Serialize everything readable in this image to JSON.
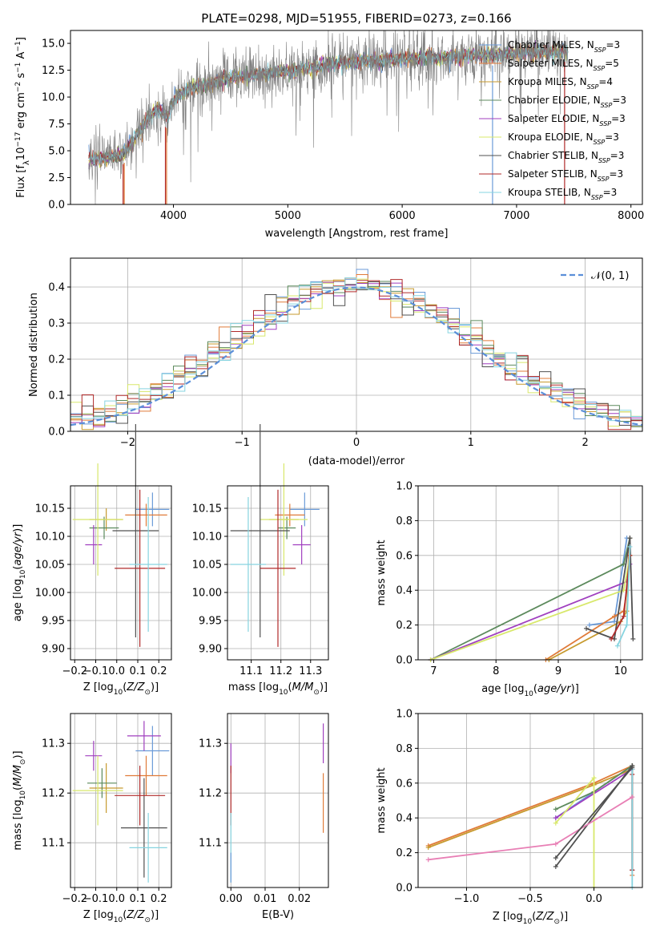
{
  "figure_title": "PLATE=0298, MJD=51955, FIBERID=0273, z=0.166",
  "models": [
    {
      "name": "Chabrier MILES",
      "nssp": "3",
      "color": "#6b9bd8"
    },
    {
      "name": "Salpeter MILES",
      "nssp": "5",
      "color": "#e07b39"
    },
    {
      "name": "Kroupa MILES",
      "nssp": "4",
      "color": "#c79a2e"
    },
    {
      "name": "Chabrier ELODIE",
      "nssp": "3",
      "color": "#5c8a5c"
    },
    {
      "name": "Salpeter ELODIE",
      "nssp": "3",
      "color": "#a03fbf"
    },
    {
      "name": "Kroupa ELODIE",
      "nssp": "3",
      "color": "#d8e86b"
    },
    {
      "name": "Chabrier STELIB",
      "nssp": "3",
      "color": "#505050"
    },
    {
      "name": "Salpeter STELIB",
      "nssp": "3",
      "color": "#b02a2a"
    },
    {
      "name": "Kroupa STELIB",
      "nssp": "3",
      "color": "#86d4e0"
    }
  ],
  "chart_data": [
    {
      "id": "spectrum",
      "type": "line",
      "xlabel": "wavelength [Angstrom, rest frame]",
      "ylabel": "Flux [f_λ 10^-17 erg cm^-2 s^-1 A^-1]",
      "xlim": [
        3100,
        8100
      ],
      "ylim": [
        0,
        16.2
      ],
      "xticks": [
        4000,
        5000,
        6000,
        7000,
        8000
      ],
      "yticks": [
        0.0,
        2.5,
        5.0,
        7.5,
        10.0,
        12.5,
        15.0
      ],
      "ytick_labels": [
        "0.0",
        "2.5",
        "5.0",
        "7.5",
        "10.0",
        "12.5",
        "15.0"
      ],
      "data_color": "#808080",
      "continuum": {
        "x": [
          3260,
          3400,
          3550,
          3650,
          3780,
          3860,
          3950,
          4000,
          4150,
          4300,
          4500,
          4700,
          4900,
          5100,
          5300,
          5500,
          5700,
          5900,
          6100,
          6300,
          6500,
          6700,
          6900,
          7100,
          7300,
          7450
        ],
        "y": [
          4.2,
          4.3,
          4.6,
          6.0,
          8.0,
          9.0,
          8.0,
          9.8,
          10.8,
          11.2,
          11.8,
          12.0,
          12.3,
          12.6,
          12.9,
          13.2,
          13.4,
          13.5,
          13.6,
          13.7,
          13.8,
          13.9,
          14.0,
          14.1,
          14.2,
          14.3
        ]
      },
      "legend": "top-right"
    },
    {
      "id": "residuals",
      "type": "histogram",
      "xlabel": "(data-model)/error",
      "ylabel": "Normed distribution",
      "xlim": [
        -2.5,
        2.5
      ],
      "ylim": [
        0,
        0.48
      ],
      "xticks": [
        -2,
        -1,
        0,
        1,
        2
      ],
      "xtick_labels": [
        "−2",
        "−1",
        "0",
        "1",
        "2"
      ],
      "yticks": [
        0.0,
        0.1,
        0.2,
        0.3,
        0.4
      ],
      "ytick_labels": [
        "0.0",
        "0.1",
        "0.2",
        "0.3",
        "0.4"
      ],
      "bins": 50,
      "bin_width": 0.1,
      "reference_label": "𝒩(0, 1)",
      "reference_color": "#5b8fd9",
      "grid": true,
      "legend": "top-right"
    },
    {
      "id": "age-vs-Z",
      "type": "scatter",
      "xlabel": "Z [log10(Z/Z⊙)]",
      "ylabel": "age  [log10(age/yr)]",
      "xlim": [
        -0.22,
        0.26
      ],
      "ylim": [
        9.88,
        10.19
      ],
      "xticks": [
        -0.2,
        -0.1,
        0.0,
        0.1,
        0.2
      ],
      "xtick_labels": [
        "−0.2",
        "−0.1",
        "0.0",
        "0.1",
        "0.2"
      ],
      "yticks": [
        9.9,
        9.95,
        10.0,
        10.05,
        10.1,
        10.15
      ],
      "ytick_labels": [
        "9.90",
        "9.95",
        "10.00",
        "10.05",
        "10.10",
        "10.15"
      ],
      "points": [
        {
          "model": 0,
          "x": 0.17,
          "xerr": 0.08,
          "y": 10.148,
          "yerr": 0.03
        },
        {
          "model": 1,
          "x": 0.14,
          "xerr": 0.1,
          "y": 10.138,
          "yerr": 0.02
        },
        {
          "model": 2,
          "x": -0.05,
          "xerr": 0.08,
          "y": 10.13,
          "yerr": 0.02
        },
        {
          "model": 3,
          "x": -0.06,
          "xerr": 0.07,
          "y": 10.115,
          "yerr": 0.02
        },
        {
          "model": 4,
          "x": -0.11,
          "xerr": 0.04,
          "y": 10.085,
          "yerr": 0.035
        },
        {
          "model": 5,
          "x": -0.09,
          "xerr": 0.12,
          "y": 10.13,
          "yerr": 0.1
        },
        {
          "model": 6,
          "x": 0.09,
          "xerr": 0.11,
          "y": 10.11,
          "yerr": 0.19
        },
        {
          "model": 7,
          "x": 0.11,
          "xerr": 0.12,
          "y": 10.043,
          "yerr": 0.14
        },
        {
          "model": 8,
          "x": 0.15,
          "xerr": 0.09,
          "y": 10.05,
          "yerr": 0.12
        }
      ]
    },
    {
      "id": "age-vs-mass",
      "type": "scatter",
      "xlabel": "mass [log10(M/M⊙)]",
      "ylabel": "",
      "xlim": [
        11.02,
        11.36
      ],
      "ylim": [
        9.88,
        10.19
      ],
      "xticks": [
        11.1,
        11.2,
        11.3
      ],
      "xtick_labels": [
        "11.1",
        "11.2",
        "11.3"
      ],
      "yticks": [
        9.9,
        9.95,
        10.0,
        10.05,
        10.1,
        10.15
      ],
      "ytick_labels": [
        "9.90",
        "9.95",
        "10.00",
        "10.05",
        "10.10",
        "10.15"
      ],
      "points": [
        {
          "model": 0,
          "x": 11.28,
          "xerr": 0.05,
          "y": 10.148,
          "yerr": 0.03
        },
        {
          "model": 1,
          "x": 11.23,
          "xerr": 0.05,
          "y": 10.138,
          "yerr": 0.02
        },
        {
          "model": 2,
          "x": 11.21,
          "xerr": 0.05,
          "y": 10.13,
          "yerr": 0.02
        },
        {
          "model": 3,
          "x": 11.22,
          "xerr": 0.03,
          "y": 10.115,
          "yerr": 0.02
        },
        {
          "model": 4,
          "x": 11.27,
          "xerr": 0.03,
          "y": 10.085,
          "yerr": 0.035
        },
        {
          "model": 5,
          "x": 11.21,
          "xerr": 0.08,
          "y": 10.13,
          "yerr": 0.1
        },
        {
          "model": 6,
          "x": 11.13,
          "xerr": 0.1,
          "y": 10.11,
          "yerr": 0.19
        },
        {
          "model": 7,
          "x": 11.19,
          "xerr": 0.06,
          "y": 10.043,
          "yerr": 0.14
        },
        {
          "model": 8,
          "x": 11.09,
          "xerr": 0.06,
          "y": 10.05,
          "yerr": 0.12
        }
      ]
    },
    {
      "id": "weight-vs-age",
      "type": "line",
      "xlabel": "age  [log10(age/yr)]",
      "ylabel": "mass weight",
      "xlim": [
        6.75,
        10.35
      ],
      "ylim": [
        0,
        1.0
      ],
      "xticks": [
        7,
        8,
        9,
        10
      ],
      "xtick_labels": [
        "7",
        "8",
        "9",
        "10"
      ],
      "yticks": [
        0.0,
        0.2,
        0.4,
        0.6,
        0.8,
        1.0
      ],
      "ytick_labels": [
        "0.0",
        "0.2",
        "0.4",
        "0.6",
        "0.8",
        "1.0"
      ],
      "series": [
        {
          "model": 0,
          "x": [
            9.5,
            9.9,
            10.1
          ],
          "y": [
            0.2,
            0.22,
            0.7
          ]
        },
        {
          "model": 1,
          "x": [
            8.8,
            9.9,
            10.05,
            10.1,
            10.15
          ],
          "y": [
            0.0,
            0.25,
            0.28,
            0.4,
            0.7
          ]
        },
        {
          "model": 2,
          "x": [
            8.85,
            10.0,
            10.1,
            10.15
          ],
          "y": [
            0.0,
            0.22,
            0.28,
            0.6
          ]
        },
        {
          "model": 3,
          "x": [
            6.95,
            10.05,
            10.15
          ],
          "y": [
            0.0,
            0.55,
            0.7
          ]
        },
        {
          "model": 4,
          "x": [
            6.95,
            10.1,
            10.15
          ],
          "y": [
            0.0,
            0.45,
            0.55
          ]
        },
        {
          "model": 5,
          "x": [
            6.95,
            10.05,
            10.15
          ],
          "y": [
            0.0,
            0.4,
            0.6
          ]
        },
        {
          "model": 6,
          "x": [
            9.45,
            9.9,
            10.15,
            10.2
          ],
          "y": [
            0.18,
            0.12,
            0.7,
            0.12
          ]
        },
        {
          "model": 7,
          "x": [
            9.85,
            10.05,
            10.15
          ],
          "y": [
            0.12,
            0.25,
            0.6
          ]
        },
        {
          "model": 8,
          "x": [
            9.95,
            10.1,
            10.15
          ],
          "y": [
            0.08,
            0.2,
            0.65
          ]
        }
      ]
    },
    {
      "id": "mass-vs-Z",
      "type": "scatter",
      "xlabel": "Z [log10(Z/Z⊙)]",
      "ylabel": "mass [log10(M/M⊙)]",
      "xlim": [
        -0.22,
        0.26
      ],
      "ylim": [
        11.01,
        11.36
      ],
      "xticks": [
        -0.2,
        -0.1,
        0.0,
        0.1,
        0.2
      ],
      "xtick_labels": [
        "−0.2",
        "−0.1",
        "0.0",
        "0.1",
        "0.2"
      ],
      "yticks": [
        11.1,
        11.2,
        11.3
      ],
      "ytick_labels": [
        "11.1",
        "11.2",
        "11.3"
      ],
      "points": [
        {
          "model": 0,
          "x": 0.17,
          "xerr": 0.08,
          "y": 11.285,
          "yerr": 0.05
        },
        {
          "model": 1,
          "x": 0.14,
          "xerr": 0.1,
          "y": 11.235,
          "yerr": 0.04
        },
        {
          "model": 2,
          "x": -0.05,
          "xerr": 0.08,
          "y": 11.21,
          "yerr": 0.05
        },
        {
          "model": 3,
          "x": -0.07,
          "xerr": 0.07,
          "y": 11.22,
          "yerr": 0.03
        },
        {
          "model": 4,
          "x": -0.11,
          "xerr": 0.04,
          "y": 11.275,
          "yerr": 0.03
        },
        {
          "model": 5,
          "x": -0.09,
          "xerr": 0.12,
          "y": 11.205,
          "yerr": 0.07
        },
        {
          "model": 6,
          "x": 0.13,
          "xerr": 0.11,
          "y": 11.13,
          "yerr": 0.1
        },
        {
          "model": 7,
          "x": 0.11,
          "xerr": 0.12,
          "y": 11.195,
          "yerr": 0.06
        },
        {
          "model": 8,
          "x": 0.15,
          "xerr": 0.09,
          "y": 11.09,
          "yerr": 0.07
        },
        {
          "model": 4,
          "x": 0.13,
          "xerr": 0.08,
          "y": 11.315,
          "yerr": 0.03
        }
      ]
    },
    {
      "id": "mass-vs-ebv",
      "type": "scatter",
      "xlabel": "E(B-V)",
      "ylabel": "",
      "xlim": [
        -0.001,
        0.0285
      ],
      "ylim": [
        11.01,
        11.36
      ],
      "xticks": [
        0.0,
        0.01,
        0.02
      ],
      "xtick_labels": [
        "0.00",
        "0.01",
        "0.02"
      ],
      "yticks": [
        11.1,
        11.2,
        11.3
      ],
      "ytick_labels": [
        "11.1",
        "11.2",
        "11.3"
      ],
      "points": [
        {
          "model": 4,
          "x": 0.0,
          "xerr": 0.0,
          "y": 11.27,
          "yerr": 0.03
        },
        {
          "model": 7,
          "x": 0.0,
          "xerr": 0.0,
          "y": 11.195,
          "yerr": 0.06
        },
        {
          "model": 8,
          "x": 0.0,
          "xerr": 0.0,
          "y": 11.09,
          "yerr": 0.07
        },
        {
          "model": 0,
          "x": 0.0,
          "xerr": 0.0,
          "y": 11.05,
          "yerr": 0.03
        },
        {
          "model": 1,
          "x": 0.027,
          "xerr": 0.0,
          "y": 11.18,
          "yerr": 0.06
        },
        {
          "model": 4,
          "x": 0.027,
          "xerr": 0.0,
          "y": 11.3,
          "yerr": 0.04
        }
      ]
    },
    {
      "id": "weight-vs-Z",
      "type": "line",
      "xlabel": "Z [log10(Z/Z⊙)]",
      "ylabel": "mass weight",
      "xlim": [
        -1.38,
        0.38
      ],
      "ylim": [
        0,
        1.0
      ],
      "xticks": [
        -1.0,
        -0.5,
        0.0
      ],
      "xtick_labels": [
        "−1.0",
        "−0.5",
        "0.0"
      ],
      "yticks": [
        0.0,
        0.2,
        0.4,
        0.6,
        0.8,
        1.0
      ],
      "ytick_labels": [
        "0.0",
        "0.2",
        "0.4",
        "0.6",
        "0.8",
        "1.0"
      ],
      "series": [
        {
          "model": 0,
          "x": [
            -0.3,
            0.3
          ],
          "y": [
            0.4,
            0.7
          ]
        },
        {
          "model": 1,
          "x": [
            -1.3,
            0.0,
            0.3,
            0.3
          ],
          "y": [
            0.24,
            0.6,
            0.7,
            0.07
          ]
        },
        {
          "model": 2,
          "x": [
            -1.3,
            0.0,
            0.3
          ],
          "y": [
            0.23,
            0.59,
            0.68
          ]
        },
        {
          "model": 3,
          "x": [
            -0.3,
            0.0,
            0.3
          ],
          "y": [
            0.45,
            0.55,
            0.7
          ]
        },
        {
          "model": 4,
          "x": [
            -0.3,
            0.3
          ],
          "y": [
            0.4,
            0.68
          ]
        },
        {
          "model": 5,
          "x": [
            -0.3,
            0.0,
            0.0
          ],
          "y": [
            0.37,
            0.63,
            0.0
          ]
        },
        {
          "model": 6,
          "x": [
            -0.3,
            0.3,
            0.3
          ],
          "y": [
            0.12,
            0.7,
            0.1
          ]
        },
        {
          "model": 7,
          "x": [
            0.3,
            0.3
          ],
          "y": [
            0.65,
            0.1
          ]
        },
        {
          "model": 8,
          "x": [
            0.3,
            0.3
          ],
          "y": [
            0.0,
            0.68
          ]
        },
        {
          "model": 0,
          "x": [
            -1.3,
            -0.3,
            0.3
          ],
          "y": [
            0.16,
            0.25,
            0.52
          ]
        },
        {
          "model": 6,
          "x": [
            -0.3,
            0.3
          ],
          "y": [
            0.17,
            0.69
          ]
        }
      ],
      "series_colors_override": {
        "9": "#e87fb5",
        "10": "#505050"
      }
    }
  ]
}
